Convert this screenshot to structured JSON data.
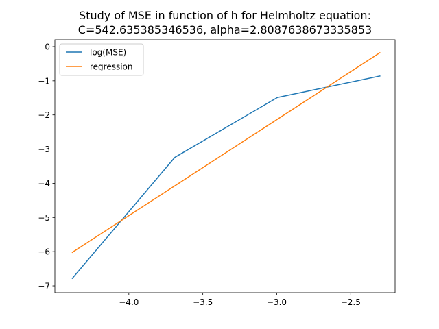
{
  "chart_data": {
    "type": "line",
    "title_line1": "Study of MSE in function of h for Helmholtz equation:",
    "title_line2": "C=542.635385346536, alpha=2.8087638673335853",
    "xlabel": "",
    "ylabel": "",
    "xlim": [
      -4.5,
      -2.2
    ],
    "ylim": [
      -7.2,
      0.2
    ],
    "xticks": [
      -4.0,
      -3.5,
      -3.0,
      -2.5
    ],
    "xtick_labels": [
      "−4.0",
      "−3.5",
      "−3.0",
      "−2.5"
    ],
    "yticks": [
      0,
      -1,
      -2,
      -3,
      -4,
      -5,
      -6,
      -7
    ],
    "ytick_labels": [
      "0",
      "−1",
      "−2",
      "−3",
      "−4",
      "−5",
      "−6",
      "−7"
    ],
    "grid": false,
    "legend_position": "top-left",
    "series": [
      {
        "name": "log(MSE)",
        "color": "#1f77b4",
        "x": [
          -4.382,
          -3.689,
          -2.996,
          -2.303
        ],
        "y": [
          -6.78,
          -3.24,
          -1.49,
          -0.86
        ]
      },
      {
        "name": "regression",
        "color": "#ff7f0e",
        "x": [
          -4.382,
          -2.303
        ],
        "y": [
          -6.02,
          -0.18
        ]
      }
    ]
  }
}
